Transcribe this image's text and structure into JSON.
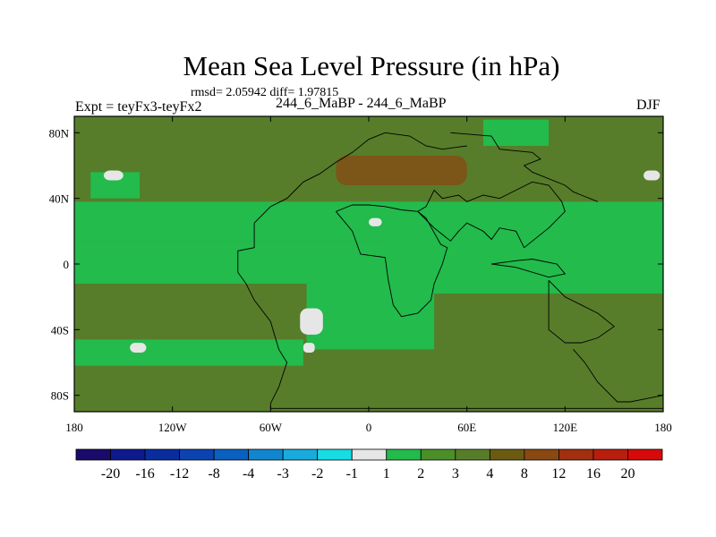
{
  "chart_data": {
    "type": "heatmap",
    "title": "Mean Sea Level Pressure (in hPa)",
    "stats_text": "rmsd= 2.05942 diff= 1.97815",
    "left_string": "Expt = teyFx3-teyFx2",
    "center_string": "244_6_MaBP - 244_6_MaBP",
    "right_string": "DJF",
    "x_ticks": [
      "180",
      "120W",
      "60W",
      "0",
      "60E",
      "120E",
      "180"
    ],
    "y_ticks": [
      "80N",
      "40N",
      "0",
      "40S",
      "80S"
    ],
    "x_tick_values": [
      -180,
      -120,
      -60,
      0,
      60,
      120,
      180
    ],
    "y_tick_values": [
      80,
      40,
      0,
      -40,
      -80
    ],
    "xlim": [
      -180,
      180
    ],
    "ylim": [
      -90,
      90
    ],
    "colorbar_labels": [
      "-20",
      "-16",
      "-12",
      "-8",
      "-4",
      "-3",
      "-2",
      "-1",
      "1",
      "2",
      "3",
      "4",
      "8",
      "12",
      "16",
      "20"
    ],
    "colorbar_colors": [
      "#1a0a6b",
      "#0d1a8c",
      "#0a2d9e",
      "#0c43b0",
      "#0a60c0",
      "#1186cf",
      "#19abdb",
      "#17dce4",
      "#e6e6e6",
      "#22bb4c",
      "#4a8f28",
      "#577d2a",
      "#6b5b12",
      "#8a4812",
      "#a03010",
      "#b81e0e",
      "#d60a0a"
    ],
    "field_colors": {
      "weak_positive": "#22bb4c",
      "mid_positive": "#577d2a",
      "strong_positive": "#7c5519",
      "near_zero": "#e6e6e6"
    },
    "field_regions": [
      {
        "level": "mid_positive",
        "lon": [
          -180,
          180
        ],
        "lat": [
          -90,
          90
        ]
      },
      {
        "level": "weak_positive",
        "lon": [
          -180,
          180
        ],
        "lat": [
          14,
          38
        ]
      },
      {
        "level": "weak_positive",
        "lon": [
          -180,
          180
        ],
        "lat": [
          -12,
          14
        ]
      },
      {
        "level": "weak_positive",
        "lon": [
          -180,
          -40
        ],
        "lat": [
          -62,
          -46
        ]
      },
      {
        "level": "weak_positive",
        "lon": [
          -38,
          40
        ],
        "lat": [
          -52,
          -6
        ]
      },
      {
        "level": "weak_positive",
        "lon": [
          10,
          180
        ],
        "lat": [
          -18,
          20
        ]
      },
      {
        "level": "weak_positive",
        "lon": [
          25,
          100
        ],
        "lat": [
          18,
          34
        ]
      },
      {
        "level": "weak_positive",
        "lon": [
          70,
          110
        ],
        "lat": [
          72,
          88
        ]
      },
      {
        "level": "weak_positive",
        "lon": [
          -170,
          -140
        ],
        "lat": [
          40,
          56
        ]
      },
      {
        "level": "strong_positive",
        "lon": [
          -20,
          60
        ],
        "lat": [
          48,
          66
        ]
      },
      {
        "level": "near_zero",
        "lon": [
          -42,
          -28
        ],
        "lat": [
          -43,
          -27
        ]
      },
      {
        "level": "near_zero",
        "lon": [
          -40,
          -33
        ],
        "lat": [
          -54,
          -48
        ]
      },
      {
        "level": "near_zero",
        "lon": [
          -146,
          -136
        ],
        "lat": [
          -54,
          -48
        ]
      },
      {
        "level": "near_zero",
        "lon": [
          -162,
          -150
        ],
        "lat": [
          51,
          57
        ]
      },
      {
        "level": "near_zero",
        "lon": [
          0,
          8
        ],
        "lat": [
          23,
          28
        ]
      },
      {
        "level": "near_zero",
        "lon": [
          168,
          178
        ],
        "lat": [
          51,
          57
        ]
      }
    ],
    "coastlines": [
      [
        [
          -60,
          35
        ],
        [
          -50,
          40
        ],
        [
          -45,
          45
        ],
        [
          -40,
          50
        ],
        [
          -30,
          55
        ],
        [
          -20,
          62
        ],
        [
          -10,
          68
        ],
        [
          0,
          76
        ],
        [
          10,
          80
        ],
        [
          25,
          78
        ],
        [
          35,
          72
        ],
        [
          45,
          70
        ],
        [
          60,
          72
        ]
      ],
      [
        [
          50,
          80
        ],
        [
          75,
          78
        ],
        [
          80,
          70
        ],
        [
          100,
          68
        ],
        [
          105,
          64
        ],
        [
          95,
          60
        ],
        [
          100,
          56
        ],
        [
          120,
          48
        ],
        [
          125,
          44
        ],
        [
          130,
          42
        ],
        [
          140,
          38
        ]
      ],
      [
        [
          -60,
          35
        ],
        [
          -70,
          25
        ],
        [
          -70,
          10
        ],
        [
          -80,
          8
        ],
        [
          -80,
          -5
        ],
        [
          -75,
          -12
        ],
        [
          -70,
          -22
        ],
        [
          -60,
          -35
        ],
        [
          -55,
          -52
        ],
        [
          -50,
          -60
        ],
        [
          -55,
          -75
        ],
        [
          -60,
          -85
        ],
        [
          -60,
          -88
        ],
        [
          180,
          -88
        ]
      ],
      [
        [
          -20,
          32
        ],
        [
          -10,
          20
        ],
        [
          -5,
          6
        ],
        [
          10,
          4
        ],
        [
          12,
          -10
        ],
        [
          15,
          -25
        ],
        [
          20,
          -32
        ],
        [
          30,
          -30
        ],
        [
          38,
          -22
        ],
        [
          40,
          -12
        ],
        [
          45,
          0
        ],
        [
          48,
          10
        ],
        [
          44,
          12
        ],
        [
          35,
          28
        ],
        [
          30,
          32
        ],
        [
          20,
          33
        ],
        [
          10,
          35
        ],
        [
          0,
          36
        ],
        [
          -10,
          36
        ],
        [
          -20,
          32
        ]
      ],
      [
        [
          30,
          32
        ],
        [
          35,
          35
        ],
        [
          40,
          45
        ],
        [
          45,
          40
        ],
        [
          55,
          42
        ],
        [
          60,
          38
        ],
        [
          70,
          42
        ],
        [
          80,
          40
        ],
        [
          90,
          45
        ],
        [
          100,
          50
        ],
        [
          110,
          48
        ],
        [
          118,
          38
        ],
        [
          120,
          32
        ],
        [
          110,
          22
        ],
        [
          100,
          14
        ],
        [
          95,
          10
        ],
        [
          90,
          20
        ],
        [
          80,
          22
        ],
        [
          75,
          15
        ],
        [
          70,
          20
        ],
        [
          60,
          25
        ],
        [
          55,
          20
        ],
        [
          50,
          14
        ],
        [
          45,
          18
        ],
        [
          40,
          22
        ],
        [
          30,
          32
        ]
      ],
      [
        [
          75,
          0
        ],
        [
          90,
          -2
        ],
        [
          100,
          -5
        ],
        [
          110,
          -8
        ],
        [
          120,
          -6
        ],
        [
          115,
          0
        ],
        [
          100,
          3
        ],
        [
          90,
          2
        ],
        [
          75,
          0
        ]
      ],
      [
        [
          110,
          -10
        ],
        [
          120,
          -20
        ],
        [
          130,
          -25
        ],
        [
          140,
          -30
        ],
        [
          150,
          -38
        ],
        [
          140,
          -45
        ],
        [
          130,
          -48
        ],
        [
          120,
          -48
        ],
        [
          110,
          -40
        ],
        [
          110,
          -25
        ],
        [
          110,
          -10
        ]
      ],
      [
        [
          125,
          -52
        ],
        [
          132,
          -60
        ],
        [
          140,
          -72
        ],
        [
          148,
          -80
        ],
        [
          152,
          -84
        ],
        [
          160,
          -84
        ],
        [
          170,
          -82
        ],
        [
          180,
          -80
        ]
      ]
    ]
  }
}
